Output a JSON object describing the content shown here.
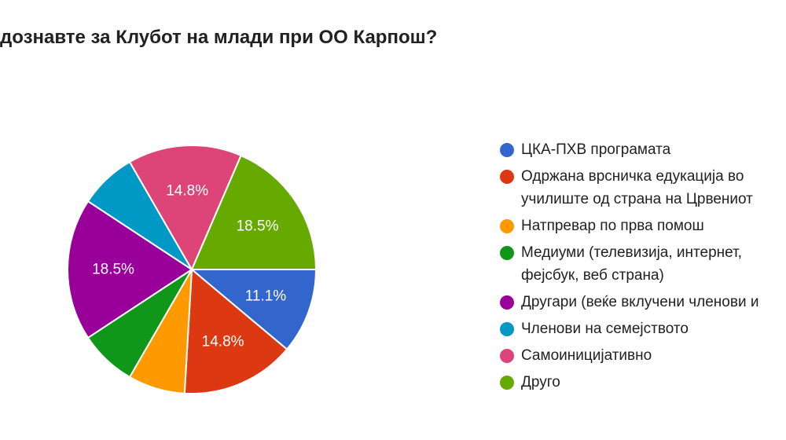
{
  "chart_data": {
    "type": "pie",
    "title": "дознавте за Клубот на млади при ОО Карпош?",
    "legend_position": "right",
    "series": [
      {
        "label": "ЦКА-ПХВ програмата",
        "display": "ЦКА-ПХВ програмата",
        "value": 11.1,
        "value_label": "11.1%",
        "color": "#3366cc"
      },
      {
        "label": "Одржана врсничка едукација во училиште од страна на Црвениот",
        "display": "Одржана врсничка едукација во\nучилиште од страна на Црвениот",
        "value": 14.8,
        "value_label": "14.8%",
        "color": "#dc3912"
      },
      {
        "label": "Натпревар по прва помош",
        "display": "Натпревар по прва помош",
        "value": 7.4,
        "value_label": "",
        "color": "#ff9900"
      },
      {
        "label": "Медиуми (телевизија, интернет, фејсбук, веб страна)",
        "display": "Медиуми (телевизија, интернет,\nфејсбук, веб страна)",
        "value": 7.4,
        "value_label": "",
        "color": "#109618"
      },
      {
        "label": "Другари (веќе вклучени членови и",
        "display": "Другари (веќе вклучени членови и",
        "value": 18.5,
        "value_label": "18.5%",
        "color": "#990099"
      },
      {
        "label": "Членови на семејството",
        "display": "Членови на семејството",
        "value": 7.4,
        "value_label": "",
        "color": "#0099c6"
      },
      {
        "label": "Самоиницијативно",
        "display": "Самоиницијативно",
        "value": 14.8,
        "value_label": "14.8%",
        "color": "#dd4477"
      },
      {
        "label": "Друго",
        "display": "Друго",
        "value": 18.5,
        "value_label": "18.5%",
        "color": "#66aa00"
      }
    ]
  }
}
